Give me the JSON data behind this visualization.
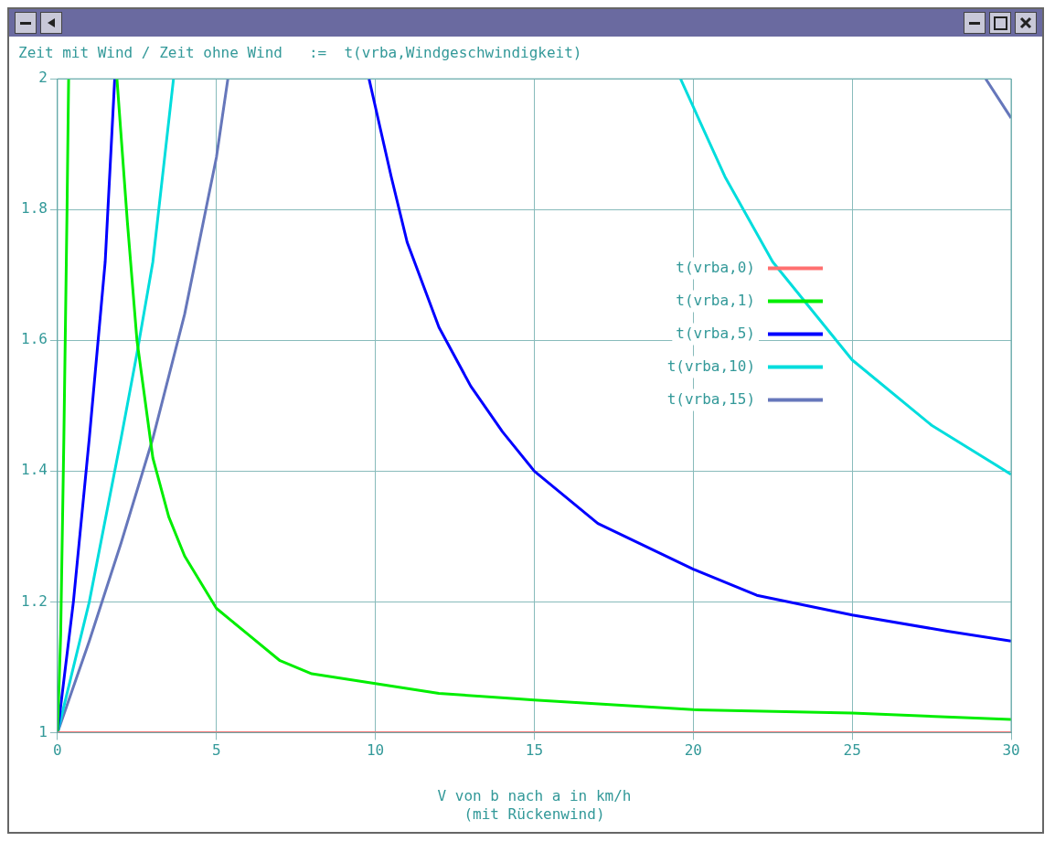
{
  "chart_data": {
    "type": "line",
    "title": "Zeit mit Wind / Zeit ohne Wind   :=  t(vrba,Windgeschwindigkeit)",
    "xlabel": "V von b nach a in km/h\n(mit Rückenwind)",
    "xlim": [
      0,
      30
    ],
    "xticks": [
      0,
      5,
      10,
      15,
      20,
      25,
      30
    ],
    "ylim": [
      1,
      2
    ],
    "yticks": [
      1,
      1.2,
      1.4,
      1.6,
      1.8,
      2
    ],
    "grid": true,
    "legend": "right",
    "marker": "none",
    "line_style": "solid",
    "series": [
      {
        "name": "t(vrba,0)",
        "color": "#ff7070",
        "x": [
          0,
          30
        ],
        "values": [
          1,
          1
        ]
      },
      {
        "name": "t(vrba,1)",
        "color": "#00ee00",
        "x": [
          0,
          0.1,
          0.2,
          0.3,
          0.35,
          0.6,
          1.87,
          2.2,
          2.5,
          3,
          3.5,
          4,
          5,
          6,
          7,
          8,
          10,
          12,
          15,
          20,
          25,
          30
        ],
        "values": [
          1,
          1.15,
          1.45,
          1.8,
          2,
          null,
          2,
          1.78,
          1.6,
          1.42,
          1.33,
          1.27,
          1.19,
          1.15,
          1.11,
          1.09,
          1.075,
          1.06,
          1.05,
          1.035,
          1.03,
          1.02
        ]
      },
      {
        "name": "t(vrba,5)",
        "color": "#0000ff",
        "x": [
          0,
          0.5,
          1,
          1.5,
          1.8,
          5,
          9.8,
          10.5,
          11,
          12,
          13,
          14,
          15,
          17,
          20,
          22,
          25,
          28,
          30
        ],
        "values": [
          1,
          1.2,
          1.45,
          1.72,
          2,
          null,
          2,
          1.85,
          1.75,
          1.62,
          1.53,
          1.46,
          1.4,
          1.32,
          1.25,
          1.21,
          1.18,
          1.155,
          1.14
        ]
      },
      {
        "name": "t(vrba,10)",
        "color": "#00dddd",
        "x": [
          0,
          1,
          2,
          2.5,
          3,
          3.65,
          10,
          19.6,
          21,
          22.5,
          25,
          27.5,
          30
        ],
        "values": [
          1,
          1.2,
          1.45,
          1.58,
          1.72,
          2,
          null,
          2,
          1.85,
          1.72,
          1.57,
          1.47,
          1.395
        ]
      },
      {
        "name": "t(vrba,15)",
        "color": "#6677bb",
        "x": [
          0,
          1,
          2,
          3,
          4,
          5,
          5.36,
          20,
          29.2,
          30
        ],
        "values": [
          1,
          1.14,
          1.29,
          1.45,
          1.64,
          1.88,
          2,
          null,
          2,
          1.94
        ]
      }
    ]
  }
}
